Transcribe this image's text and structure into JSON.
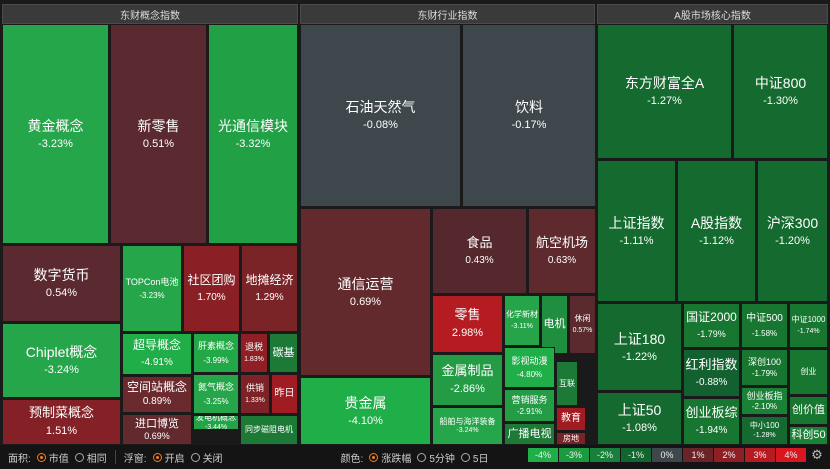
{
  "panels": [
    {
      "title": "东财概念指数"
    },
    {
      "title": "东财行业指数"
    },
    {
      "title": "A股市场核心指数"
    }
  ],
  "tiles": [
    {
      "name": "黄金概念",
      "pct": "-3.23%",
      "color": "#26a64a"
    },
    {
      "name": "新零售",
      "pct": "0.51%",
      "color": "#5a2a30"
    },
    {
      "name": "光通信模块",
      "pct": "-3.32%",
      "color": "#22a046"
    },
    {
      "name": "数字货币",
      "pct": "0.54%",
      "color": "#5a2a30"
    },
    {
      "name": "TOPCon电池",
      "pct": "-3.23%",
      "color": "#26a64a"
    },
    {
      "name": "社区团购",
      "pct": "1.70%",
      "color": "#8a2025"
    },
    {
      "name": "地摊经济",
      "pct": "1.29%",
      "color": "#7a2428"
    },
    {
      "name": "Chiplet概念",
      "pct": "-3.24%",
      "color": "#26a64a"
    },
    {
      "name": "超导概念",
      "pct": "-4.91%",
      "color": "#1fae47"
    },
    {
      "name": "肝素概念",
      "pct": "-3.99%",
      "color": "#22a846"
    },
    {
      "name": "退税",
      "pct": "1.83%",
      "color": "#8f1f24"
    },
    {
      "name": "碳基",
      "pct": "",
      "color": "#1c7a36"
    },
    {
      "name": "空间站概念",
      "pct": "0.89%",
      "color": "#6a2a2e"
    },
    {
      "name": "预制菜概念",
      "pct": "1.51%",
      "color": "#842126"
    },
    {
      "name": "氮气概念",
      "pct": "-3.25%",
      "color": "#26a64a"
    },
    {
      "name": "供销",
      "pct": "1.33%",
      "color": "#7d2327"
    },
    {
      "name": "昨日",
      "pct": "",
      "color": "#a01c22"
    },
    {
      "name": "进口博览",
      "pct": "0.69%",
      "color": "#632a2e"
    },
    {
      "name": "发电机概念",
      "pct": "-3.44%",
      "color": "#24a448"
    },
    {
      "name": "同步磁阻电机",
      "pct": "",
      "color": "#1c7a36"
    },
    {
      "name": "石油天然气",
      "pct": "-0.08%",
      "color": "#3e474b"
    },
    {
      "name": "饮料",
      "pct": "-0.17%",
      "color": "#3e474b"
    },
    {
      "name": "通信运营",
      "pct": "0.69%",
      "color": "#632a2e"
    },
    {
      "name": "食品",
      "pct": "0.43%",
      "color": "#54282d"
    },
    {
      "name": "航空机场",
      "pct": "0.63%",
      "color": "#5f2a2e"
    },
    {
      "name": "零售",
      "pct": "2.98%",
      "color": "#b51c22"
    },
    {
      "name": "化学新材",
      "pct": "-3.11%",
      "color": "#26a44a"
    },
    {
      "name": "电机",
      "pct": "",
      "color": "#1f8e3e"
    },
    {
      "name": "休闲",
      "pct": "0.57%",
      "color": "#5a2a2f"
    },
    {
      "name": "金属制品",
      "pct": "-2.86%",
      "color": "#239c45"
    },
    {
      "name": "影视动漫",
      "pct": "-4.80%",
      "color": "#1fae47"
    },
    {
      "name": "互联",
      "pct": "",
      "color": "#1c7a36"
    },
    {
      "name": "营销服务",
      "pct": "-2.91%",
      "color": "#239c45"
    },
    {
      "name": "贵金属",
      "pct": "-4.10%",
      "color": "#1fae47"
    },
    {
      "name": "船舶与海洋装备",
      "pct": "-3.24%",
      "color": "#26a64a"
    },
    {
      "name": "广播电视",
      "pct": "",
      "color": "#1c7a36"
    },
    {
      "name": "教育",
      "pct": "",
      "color": "#a01c22"
    },
    {
      "name": "房地",
      "pct": "",
      "color": "#7a2428"
    },
    {
      "name": "东方财富全A",
      "pct": "-1.27%",
      "color": "#156a2f"
    },
    {
      "name": "中证800",
      "pct": "-1.30%",
      "color": "#156a2f"
    },
    {
      "name": "上证指数",
      "pct": "-1.11%",
      "color": "#156a2f"
    },
    {
      "name": "A股指数",
      "pct": "-1.12%",
      "color": "#156a2f"
    },
    {
      "name": "沪深300",
      "pct": "-1.20%",
      "color": "#156a2f"
    },
    {
      "name": "上证180",
      "pct": "-1.22%",
      "color": "#156a2f"
    },
    {
      "name": "国证2000",
      "pct": "-1.79%",
      "color": "#177630"
    },
    {
      "name": "中证500",
      "pct": "-1.58%",
      "color": "#177630"
    },
    {
      "name": "中证1000",
      "pct": "-1.74%",
      "color": "#177630"
    },
    {
      "name": "红利指数",
      "pct": "-0.88%",
      "color": "#136030"
    },
    {
      "name": "深创100",
      "pct": "-1.79%",
      "color": "#177630"
    },
    {
      "name": "创业板指",
      "pct": "-2.10%",
      "color": "#1a8236"
    },
    {
      "name": "创业",
      "pct": "",
      "color": "#177630"
    },
    {
      "name": "上证50",
      "pct": "-1.08%",
      "color": "#156a2f"
    },
    {
      "name": "创业板综",
      "pct": "-1.94%",
      "color": "#177630"
    },
    {
      "name": "中小100",
      "pct": "-1.28%",
      "color": "#156a2f"
    },
    {
      "name": "创价值",
      "pct": "",
      "color": "#177630"
    },
    {
      "name": "科创50",
      "pct": "",
      "color": "#1a8236"
    }
  ],
  "controls": {
    "area_label": "面积:",
    "area_opt1": "市值",
    "area_opt2": "相同",
    "float_label": "浮窗:",
    "float_opt1": "开启",
    "float_opt2": "关闭",
    "color_label": "颜色:",
    "color_opt1": "涨跌幅",
    "color_opt2": "5分钟",
    "color_opt3": "5日"
  },
  "legend": [
    {
      "label": "-4%",
      "color": "#1fae47"
    },
    {
      "label": "-3%",
      "color": "#1c9a40"
    },
    {
      "label": "-2%",
      "color": "#17803a"
    },
    {
      "label": "-1%",
      "color": "#136530"
    },
    {
      "label": "0%",
      "color": "#3e474b"
    },
    {
      "label": "1%",
      "color": "#6a2428"
    },
    {
      "label": "2%",
      "color": "#8f1f24"
    },
    {
      "label": "3%",
      "color": "#b51c22"
    },
    {
      "label": "4%",
      "color": "#d8161d"
    }
  ],
  "settings_icon": "gear-icon"
}
